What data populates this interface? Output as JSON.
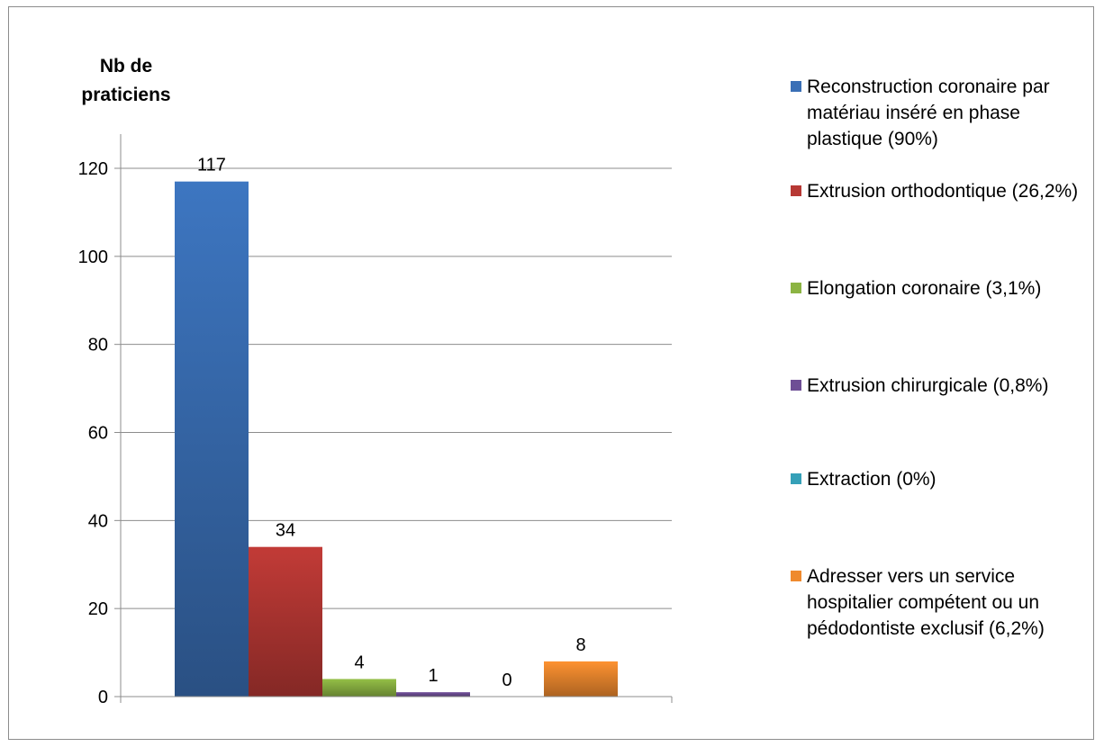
{
  "chart_data": {
    "type": "bar",
    "ylabel": "Nb de praticiens",
    "ylim": [
      0,
      120
    ],
    "yticks": [
      0,
      20,
      40,
      60,
      80,
      100,
      120
    ],
    "grid": true,
    "legend_position": "right",
    "series": [
      {
        "name": "Reconstruction coronaire par matériau inséré en phase plastique (90%)",
        "value": 117,
        "color": "#3a6fb6"
      },
      {
        "name": "Extrusion orthodontique (26,2%)",
        "value": 34,
        "color": "#b73834"
      },
      {
        "name": "Elongation coronaire (3,1%)",
        "value": 4,
        "color": "#8cb443"
      },
      {
        "name": "Extrusion chirurgicale (0,8%)",
        "value": 1,
        "color": "#6e4e95"
      },
      {
        "name": "Extraction (0%)",
        "value": 0,
        "color": "#35a0b8"
      },
      {
        "name": "Adresser vers un service hospitalier compétent ou un pédodontiste exclusif (6,2%)",
        "value": 8,
        "color": "#ef8a2e"
      }
    ]
  }
}
